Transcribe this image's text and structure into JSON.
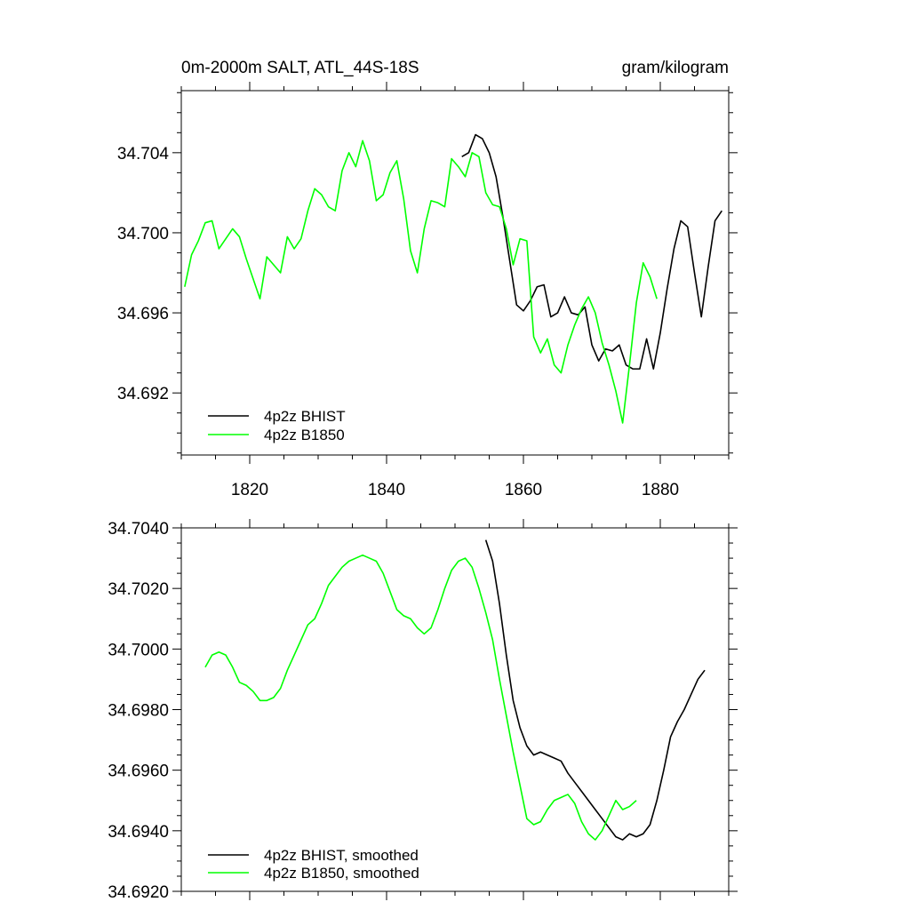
{
  "chart_data": [
    {
      "type": "line",
      "title": "0m-2000m SALT, ATL_44S-18S",
      "units": "gram/kilogram",
      "xlim": [
        1810,
        1890
      ],
      "ylim": [
        34.6889,
        34.7071
      ],
      "xticks": [
        1820,
        1840,
        1860,
        1880
      ],
      "xtick_labels": [
        "1820",
        "1840",
        "1860",
        "1880"
      ],
      "yticks": [
        34.692,
        34.696,
        34.7,
        34.704
      ],
      "ytick_labels": [
        "34.692",
        "34.696",
        "34.700",
        "34.704"
      ],
      "legend_position": "bottom-left",
      "series": [
        {
          "name": "4p2z BHIST",
          "color": "#000000",
          "x": [
            1851,
            1852,
            1853,
            1854,
            1855,
            1856,
            1857,
            1858,
            1859,
            1860,
            1861,
            1862,
            1863,
            1864,
            1865,
            1866,
            1867,
            1868,
            1869,
            1870,
            1871,
            1872,
            1873,
            1874,
            1875,
            1876,
            1877,
            1878,
            1879,
            1880,
            1881,
            1882,
            1883,
            1884,
            1885,
            1886,
            1887,
            1888,
            1889
          ],
          "y": [
            34.7038,
            34.704,
            34.7049,
            34.7047,
            34.704,
            34.7028,
            34.7008,
            34.6986,
            34.6964,
            34.6961,
            34.6966,
            34.6973,
            34.6974,
            34.6958,
            34.696,
            34.6968,
            34.696,
            34.6959,
            34.6963,
            34.6944,
            34.6936,
            34.6942,
            34.6941,
            34.6944,
            34.6934,
            34.6932,
            34.6932,
            34.6947,
            34.6932,
            34.695,
            34.6972,
            34.6992,
            34.7006,
            34.7003,
            34.698,
            34.6958,
            34.6983,
            34.7006,
            34.7011
          ]
        },
        {
          "name": "4p2z B1850",
          "color": "#00ff00",
          "x": [
            1810.5,
            1811.5,
            1812.5,
            1813.5,
            1814.5,
            1815.5,
            1816.5,
            1817.5,
            1818.5,
            1819.5,
            1820.5,
            1821.5,
            1822.5,
            1823.5,
            1824.5,
            1825.5,
            1826.5,
            1827.5,
            1828.5,
            1829.5,
            1830.5,
            1831.5,
            1832.5,
            1833.5,
            1834.5,
            1835.5,
            1836.5,
            1837.5,
            1838.5,
            1839.5,
            1840.5,
            1841.5,
            1842.5,
            1843.5,
            1844.5,
            1845.5,
            1846.5,
            1847.5,
            1848.5,
            1849.5,
            1850.5,
            1851.5,
            1852.5,
            1853.5,
            1854.5,
            1855.5,
            1856.5,
            1857.5,
            1858.5,
            1859.5,
            1860.5,
            1861.5,
            1862.5,
            1863.5,
            1864.5,
            1865.5,
            1866.5,
            1867.5,
            1868.5,
            1869.5,
            1870.5,
            1871.5,
            1872.5,
            1873.5,
            1874.5,
            1875.5,
            1876.5,
            1877.5,
            1878.5,
            1879.5
          ],
          "y": [
            34.6973,
            34.6989,
            34.6996,
            34.7005,
            34.7006,
            34.6992,
            34.6997,
            34.7002,
            34.6998,
            34.6987,
            34.6977,
            34.6967,
            34.6988,
            34.6984,
            34.698,
            34.6998,
            34.6992,
            34.6997,
            34.7011,
            34.7022,
            34.7019,
            34.7013,
            34.7011,
            34.7031,
            34.704,
            34.7033,
            34.7046,
            34.7036,
            34.7016,
            34.7019,
            34.703,
            34.7036,
            34.7017,
            34.6991,
            34.698,
            34.7002,
            34.7016,
            34.7015,
            34.7013,
            34.7037,
            34.7033,
            34.7028,
            34.704,
            34.7038,
            34.702,
            34.7014,
            34.7013,
            34.7002,
            34.6984,
            34.6997,
            34.6996,
            34.6948,
            34.694,
            34.6947,
            34.6934,
            34.693,
            34.6944,
            34.6954,
            34.6962,
            34.6968,
            34.696,
            34.6945,
            34.6934,
            34.6921,
            34.6905,
            34.6934,
            34.6965,
            34.6985,
            34.6978,
            34.6967
          ]
        }
      ]
    },
    {
      "type": "line",
      "title": "",
      "xlim": [
        1810,
        1890
      ],
      "ylim": [
        34.692,
        34.704
      ],
      "xticks": [
        1820,
        1840,
        1860,
        1880
      ],
      "xtick_labels": [],
      "yticks": [
        34.692,
        34.694,
        34.696,
        34.698,
        34.7,
        34.702,
        34.704
      ],
      "ytick_labels": [
        "34.6920",
        "34.6940",
        "34.6960",
        "34.6980",
        "34.7000",
        "34.7020",
        "34.7040"
      ],
      "legend_position": "bottom-left",
      "series": [
        {
          "name": "4p2z BHIST, smoothed",
          "color": "#000000",
          "x": [
            1854.5,
            1855.5,
            1856.5,
            1857.5,
            1858.5,
            1859.5,
            1860.5,
            1861.5,
            1862.5,
            1863.5,
            1864.5,
            1865.5,
            1866.5,
            1867.5,
            1868.5,
            1869.5,
            1870.5,
            1871.5,
            1872.5,
            1873.5,
            1874.5,
            1875.5,
            1876.5,
            1877.5,
            1878.5,
            1879.5,
            1880.5,
            1881.5,
            1882.5,
            1883.5,
            1884.5,
            1885.5,
            1886.5
          ],
          "y": [
            34.7036,
            34.7029,
            34.7015,
            34.6998,
            34.6983,
            34.6974,
            34.6968,
            34.6965,
            34.6966,
            34.6965,
            34.6964,
            34.6963,
            34.6959,
            34.6956,
            34.6953,
            34.695,
            34.6947,
            34.6944,
            34.6941,
            34.6938,
            34.6937,
            34.6939,
            34.6938,
            34.6939,
            34.6942,
            34.695,
            34.696,
            34.6971,
            34.6976,
            34.698,
            34.6985,
            34.699,
            34.6993
          ]
        },
        {
          "name": "4p2z B1850, smoothed",
          "color": "#00ff00",
          "x": [
            1813.5,
            1814.5,
            1815.5,
            1816.5,
            1817.5,
            1818.5,
            1819.5,
            1820.5,
            1821.5,
            1822.5,
            1823.5,
            1824.5,
            1825.5,
            1826.5,
            1827.5,
            1828.5,
            1829.5,
            1830.5,
            1831.5,
            1832.5,
            1833.5,
            1834.5,
            1835.5,
            1836.5,
            1837.5,
            1838.5,
            1839.5,
            1840.5,
            1841.5,
            1842.5,
            1843.5,
            1844.5,
            1845.5,
            1846.5,
            1847.5,
            1848.5,
            1849.5,
            1850.5,
            1851.5,
            1852.5,
            1853.5,
            1854.5,
            1855.5,
            1856.5,
            1857.5,
            1858.5,
            1859.5,
            1860.5,
            1861.5,
            1862.5,
            1863.5,
            1864.5,
            1865.5,
            1866.5,
            1867.5,
            1868.5,
            1869.5,
            1870.5,
            1871.5,
            1872.5,
            1873.5,
            1874.5,
            1875.5,
            1876.5
          ],
          "y": [
            34.6994,
            34.6998,
            34.6999,
            34.6998,
            34.6994,
            34.6989,
            34.6988,
            34.6986,
            34.6983,
            34.6983,
            34.6984,
            34.6987,
            34.6993,
            34.6998,
            34.7003,
            34.7008,
            34.701,
            34.7015,
            34.7021,
            34.7024,
            34.7027,
            34.7029,
            34.703,
            34.7031,
            34.703,
            34.7029,
            34.7025,
            34.7019,
            34.7013,
            34.7011,
            34.701,
            34.7007,
            34.7005,
            34.7007,
            34.7013,
            34.702,
            34.7026,
            34.7029,
            34.703,
            34.7027,
            34.702,
            34.7012,
            34.7003,
            34.699,
            34.6978,
            34.6966,
            34.6955,
            34.6944,
            34.6942,
            34.6943,
            34.6947,
            34.695,
            34.6951,
            34.6952,
            34.6949,
            34.6943,
            34.6939,
            34.6937,
            34.694,
            34.6945,
            34.695,
            34.6947,
            34.6948,
            34.695
          ]
        }
      ]
    }
  ]
}
